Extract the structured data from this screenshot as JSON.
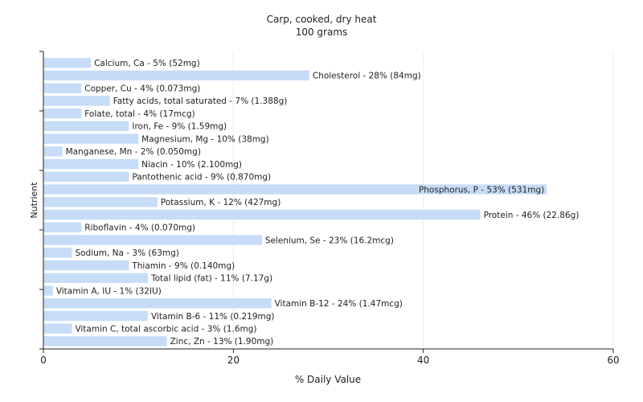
{
  "chart_data": {
    "type": "bar",
    "orientation": "horizontal",
    "title": "Carp, cooked, dry heat",
    "subtitle": "100 grams",
    "xlabel": "% Daily Value",
    "ylabel": "Nutrient",
    "xlim": [
      0,
      60
    ],
    "xticks": [
      0,
      20,
      40,
      60
    ],
    "grid": true,
    "bar_color": "#c6dcf7",
    "categories": [
      "Calcium, Ca",
      "Cholesterol",
      "Copper, Cu",
      "Fatty acids, total saturated",
      "Folate, total",
      "Iron, Fe",
      "Magnesium, Mg",
      "Manganese, Mn",
      "Niacin",
      "Pantothenic acid",
      "Phosphorus, P",
      "Potassium, K",
      "Protein",
      "Riboflavin",
      "Selenium, Se",
      "Sodium, Na",
      "Thiamin",
      "Total lipid (fat)",
      "Vitamin A, IU",
      "Vitamin B-12",
      "Vitamin B-6",
      "Vitamin C, total ascorbic acid",
      "Zinc, Zn"
    ],
    "values": [
      5,
      28,
      4,
      7,
      4,
      9,
      10,
      2,
      10,
      9,
      53,
      12,
      46,
      4,
      23,
      3,
      9,
      11,
      1,
      24,
      11,
      3,
      13
    ],
    "labels": [
      "Calcium, Ca - 5% (52mg)",
      "Cholesterol - 28% (84mg)",
      "Copper, Cu - 4% (0.073mg)",
      "Fatty acids, total saturated - 7% (1.388g)",
      "Folate, total - 4% (17mcg)",
      "Iron, Fe - 9% (1.59mg)",
      "Magnesium, Mg - 10% (38mg)",
      "Manganese, Mn - 2% (0.050mg)",
      "Niacin - 10% (2.100mg)",
      "Pantothenic acid - 9% (0.870mg)",
      "Phosphorus, P - 53% (531mg)",
      "Potassium, K - 12% (427mg)",
      "Protein - 46% (22.86g)",
      "Riboflavin - 4% (0.070mg)",
      "Selenium, Se - 23% (16.2mcg)",
      "Sodium, Na - 3% (63mg)",
      "Thiamin - 9% (0.140mg)",
      "Total lipid (fat) - 11% (7.17g)",
      "Vitamin A, IU - 1% (32IU)",
      "Vitamin B-12 - 24% (1.47mcg)",
      "Vitamin B-6 - 11% (0.219mg)",
      "Vitamin C, total ascorbic acid - 3% (1.6mg)",
      "Zinc, Zn - 13% (1.90mg)"
    ]
  }
}
